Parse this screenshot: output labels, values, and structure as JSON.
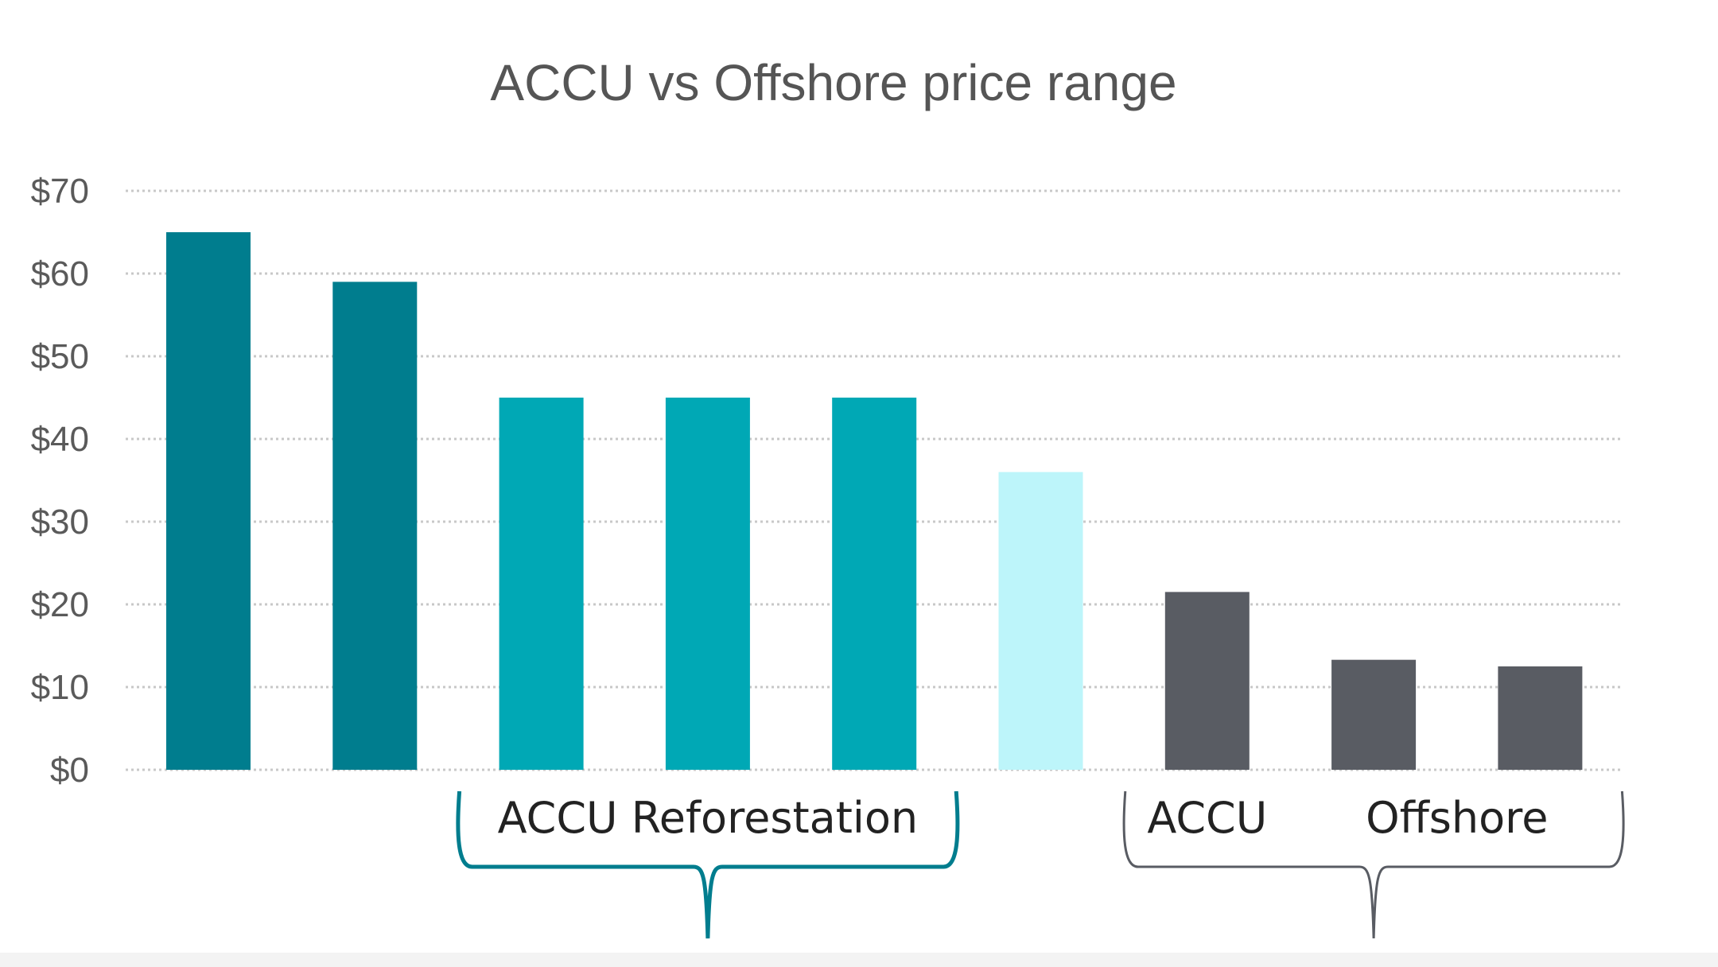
{
  "chart_data": {
    "type": "bar",
    "title": "ACCU vs Offshore price range",
    "xlabel": "",
    "ylabel": "",
    "ylim": [
      0,
      70
    ],
    "yticks": [
      0,
      10,
      20,
      30,
      40,
      50,
      60,
      70
    ],
    "ytick_labels": [
      "$0",
      "$10",
      "$20",
      "$30",
      "$40",
      "$50",
      "$60",
      "$70"
    ],
    "grid": true,
    "categories": [
      "",
      "",
      "",
      "",
      "",
      "",
      "",
      "",
      ""
    ],
    "values": [
      65,
      59,
      45,
      45,
      45,
      36,
      21.5,
      13.3,
      12.5
    ],
    "bar_colors": [
      "#007d8e",
      "#007d8e",
      "#00a8b5",
      "#00a8b5",
      "#00a8b5",
      "#bdf5fa",
      "#595c63",
      "#595c63",
      "#595c63"
    ],
    "group_labels": [
      {
        "label": "ACCU Reforestation",
        "bars": [
          2,
          3,
          4
        ],
        "color": "#007d8e"
      },
      {
        "label": "ACCU",
        "bars": [
          6
        ],
        "color": "#595c63"
      },
      {
        "label": "Offshore",
        "bars": [
          7,
          8
        ],
        "color": "#595c63"
      }
    ],
    "brackets": [
      {
        "bars": [
          2,
          3,
          4
        ],
        "color": "#007d8e"
      },
      {
        "bars": [
          6,
          7,
          8
        ],
        "color": "#595c63"
      }
    ]
  }
}
